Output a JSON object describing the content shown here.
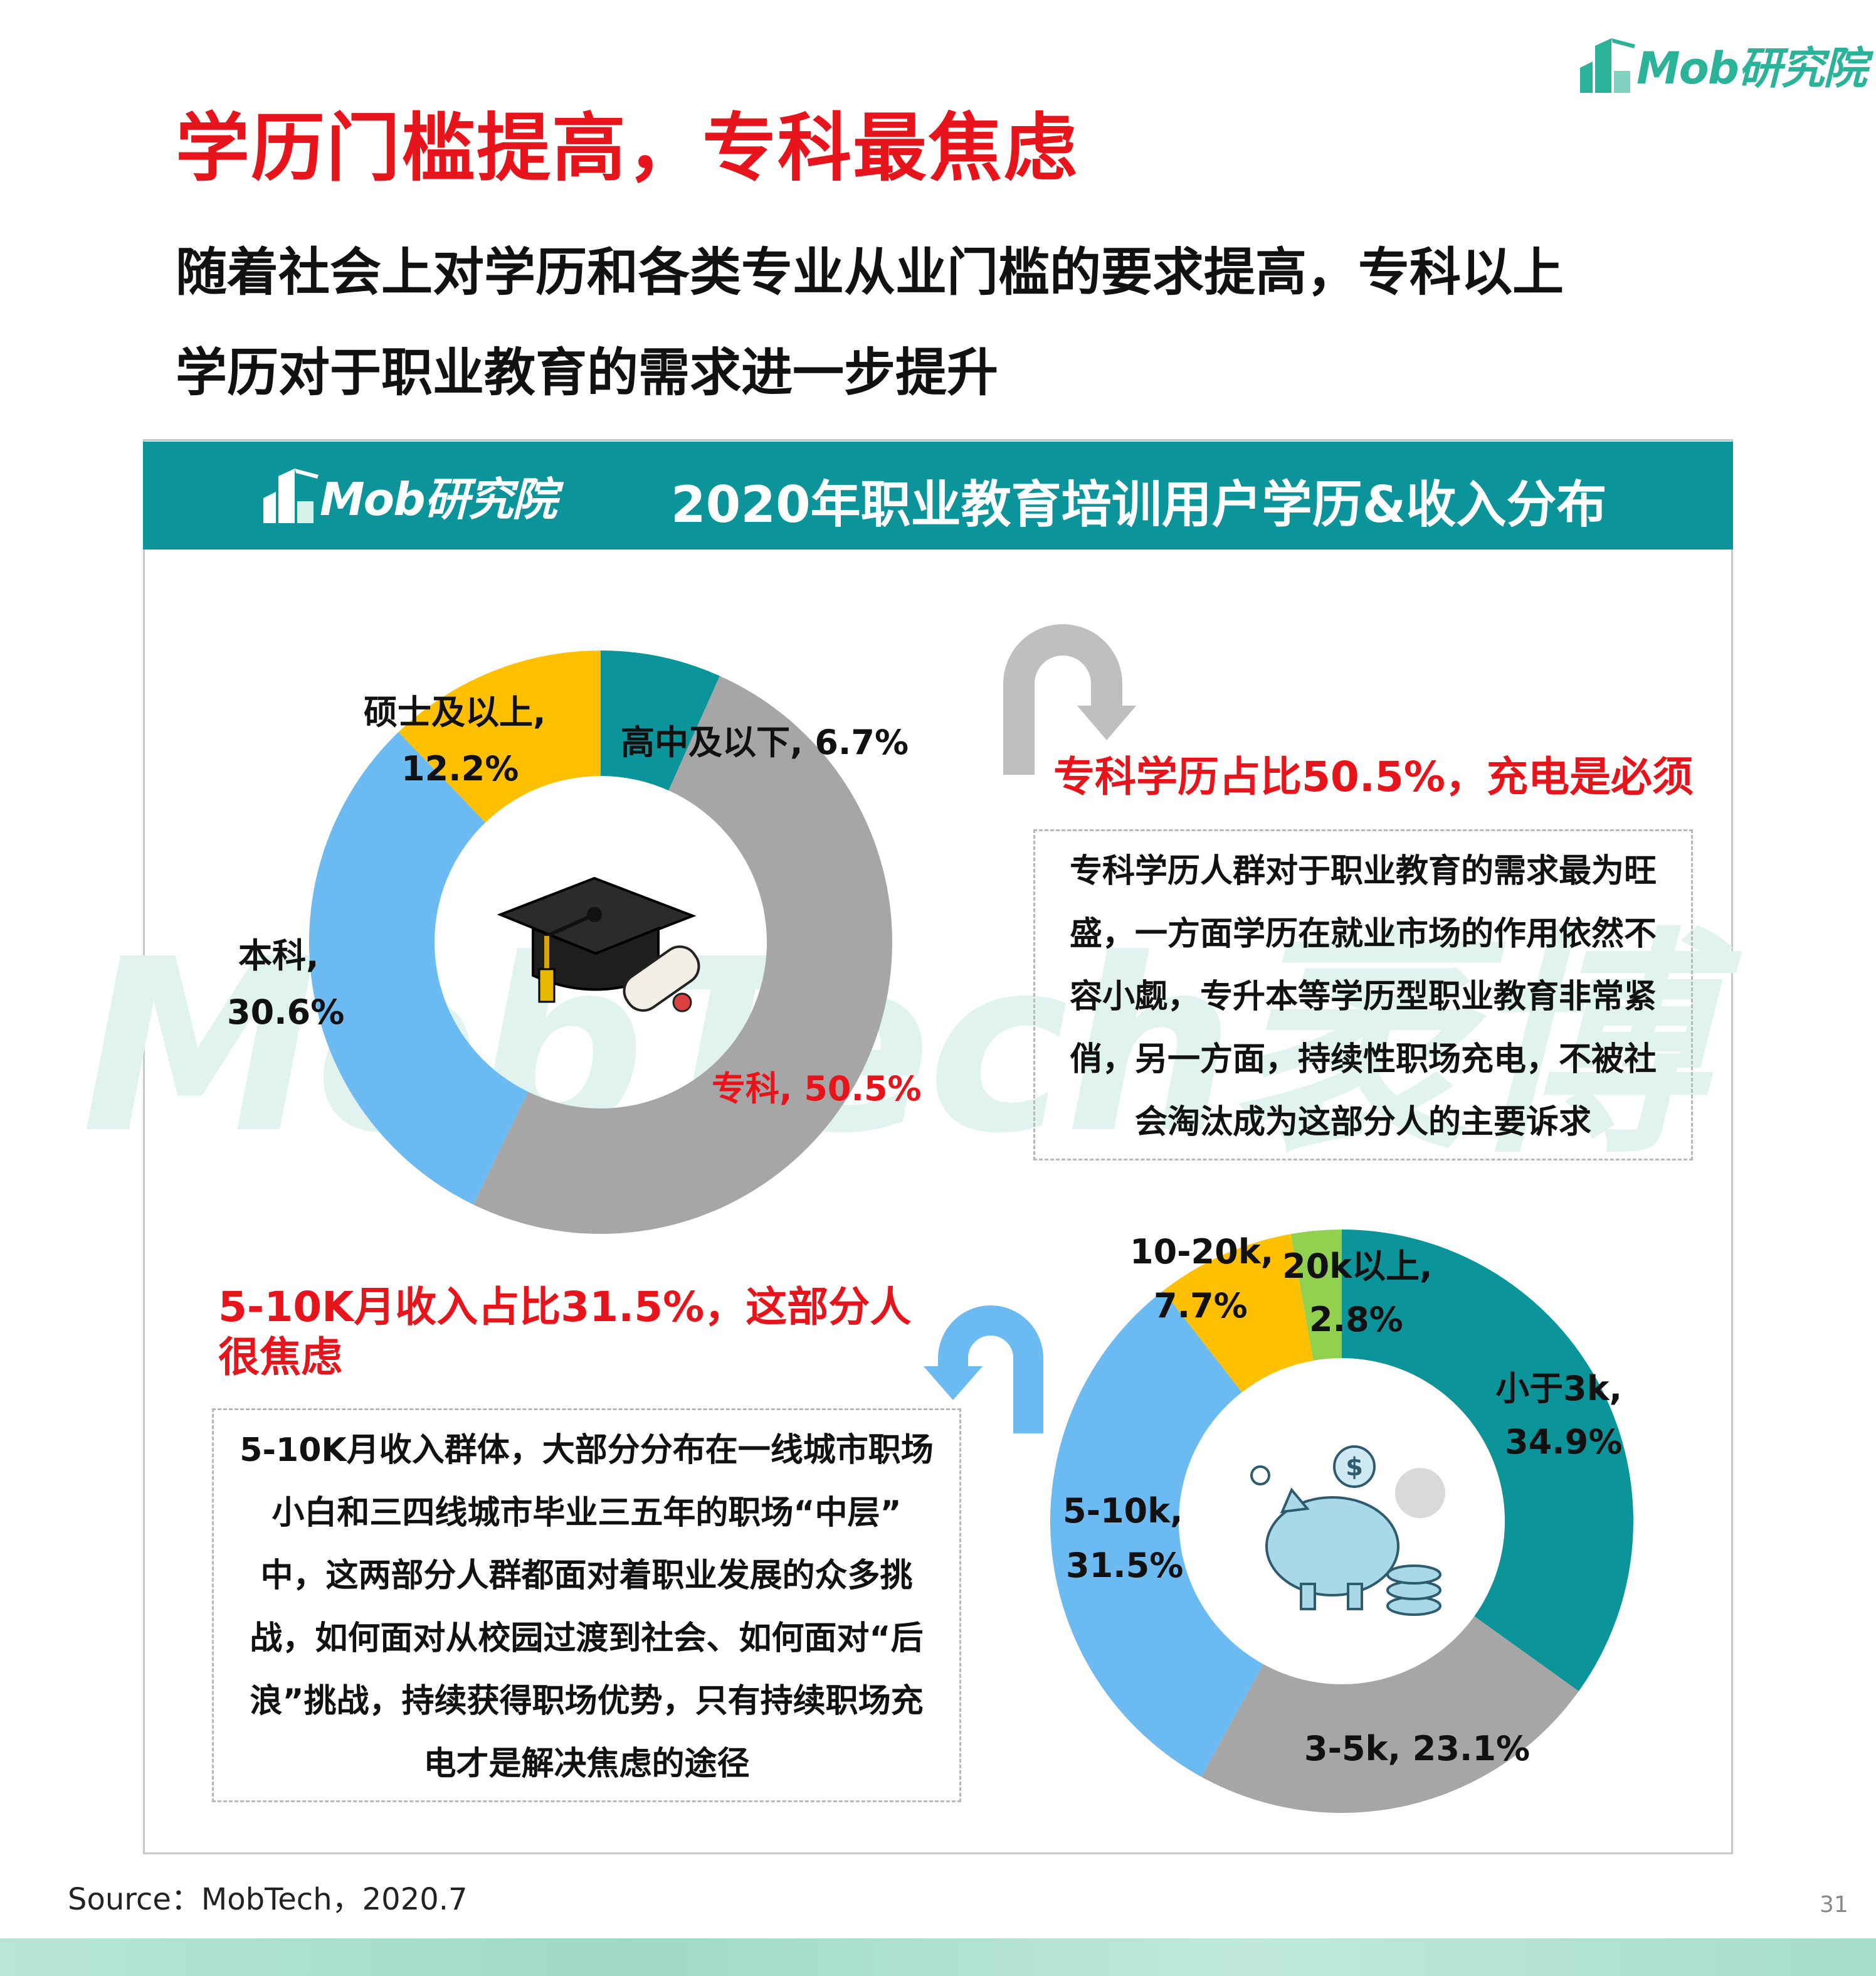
{
  "brand": {
    "logo_text": "Mob研究院"
  },
  "headline": "学历门槛提高，专科最焦虑",
  "subheadline_line1": "随着社会上对学历和各类专业从业门槛的要求提高，专科以上",
  "subheadline_line2": "学历对于职业教育的需求进一步提升",
  "panel": {
    "title": "2020年职业教育培训用户学历&收入分布"
  },
  "watermark": "MobTech袤博",
  "colors": {
    "teal": "#0b9499",
    "gray": "#a6a6a6",
    "blue": "#6cbaf2",
    "yellow": "#ffc000",
    "green": "#92d050",
    "red": "#e8141c"
  },
  "edu_note": {
    "title": "专科学历占比50.5%，充电是必须",
    "lines": [
      "专科学历人群对于职业教育的需求最为旺",
      "盛，一方面学历在就业市场的作用依然不",
      "容小觑，专升本等学历型职业教育非常紧",
      "俏，另一方面，持续性职场充电，不被社",
      "会淘汰成为这部分人的主要诉求"
    ]
  },
  "income_note": {
    "title_line1": "5-10K月收入占比31.5%，这部分人",
    "title_line2": "很焦虑",
    "lines": [
      "5-10K月收入群体，大部分分布在一线城市职场",
      "小白和三四线城市毕业三五年的职场“中层”",
      "中，这两部分人群都面对着职业发展的众多挑",
      "战，如何面对从校园过渡到社会、如何面对“后",
      "浪”挑战，持续获得职场优势，只有持续职场充",
      "电才是解决焦虑的途径"
    ]
  },
  "chart_labels": {
    "edu_gaozhong": "高中及以下, 6.7%",
    "edu_zhuanke": "专科, 50.5%",
    "edu_benke_1": "本科,",
    "edu_benke_2": "30.6%",
    "edu_shuoshi_1": "硕士及以上,",
    "edu_shuoshi_2": "12.2%",
    "inc_3k_1": "小于3k,",
    "inc_3k_2": "34.9%",
    "inc_35k": "3-5k, 23.1%",
    "inc_510k_1": "5-10k,",
    "inc_510k_2": "31.5%",
    "inc_1020k_1": "10-20k,",
    "inc_1020k_2": "7.7%",
    "inc_20k_1": "20k以上,",
    "inc_20k_2": "2.8%"
  },
  "chart_data": [
    {
      "type": "pie",
      "categories": [
        "高中及以下",
        "专科",
        "本科",
        "硕士及以上"
      ],
      "values": [
        6.7,
        50.5,
        30.6,
        12.2
      ],
      "colors": [
        "#0b9499",
        "#a6a6a6",
        "#6cbaf2",
        "#ffc000"
      ]
    },
    {
      "type": "pie",
      "categories": [
        "小于3k",
        "3-5k",
        "5-10k",
        "10-20k",
        "20k以上"
      ],
      "values": [
        34.9,
        23.1,
        31.5,
        7.7,
        2.8
      ],
      "colors": [
        "#0b9499",
        "#a6a6a6",
        "#6cbaf2",
        "#ffc000",
        "#92d050"
      ]
    }
  ],
  "source": "Source：MobTech，2020.7",
  "page_number": "31"
}
